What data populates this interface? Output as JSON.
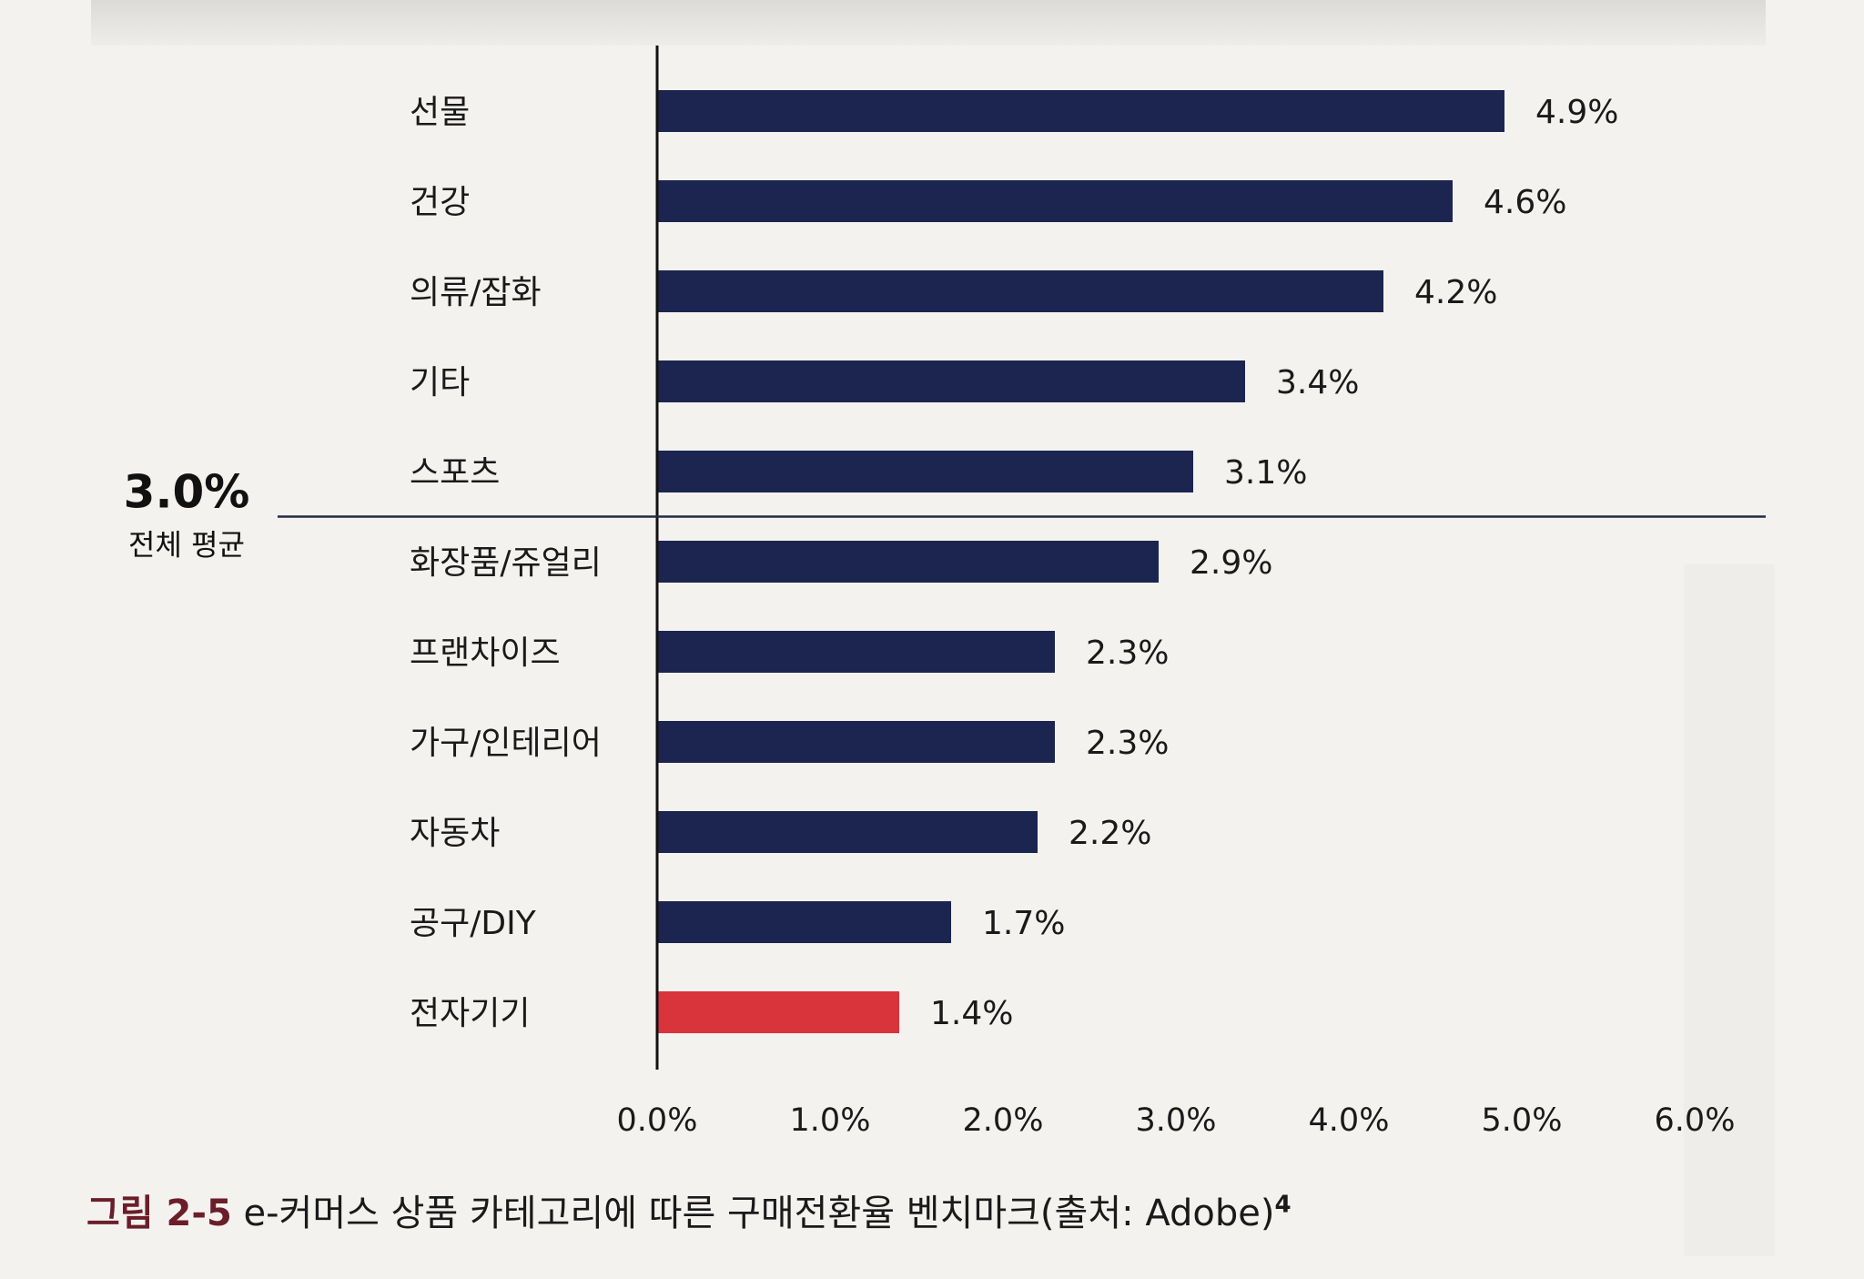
{
  "chart_data": {
    "type": "bar",
    "orientation": "horizontal",
    "categories": [
      "선물",
      "건강",
      "의류/잡화",
      "기타",
      "스포츠",
      "화장품/쥬얼리",
      "프랜차이즈",
      "가구/인테리어",
      "자동차",
      "공구/DIY",
      "전자기기"
    ],
    "values": [
      4.9,
      4.6,
      4.2,
      3.4,
      3.1,
      2.9,
      2.3,
      2.3,
      2.2,
      1.7,
      1.4
    ],
    "value_labels": [
      "4.9%",
      "4.6%",
      "4.2%",
      "3.4%",
      "3.1%",
      "2.9%",
      "2.3%",
      "2.3%",
      "2.2%",
      "1.7%",
      "1.4%"
    ],
    "bar_colors": [
      "#1b2550",
      "#1b2550",
      "#1b2550",
      "#1b2550",
      "#1b2550",
      "#1b2550",
      "#1b2550",
      "#1b2550",
      "#1b2550",
      "#1b2550",
      "#d9343c"
    ],
    "xlim": [
      0,
      6
    ],
    "xticks": [
      0,
      1,
      2,
      3,
      4,
      5,
      6
    ],
    "xtick_labels": [
      "0.0%",
      "1.0%",
      "2.0%",
      "3.0%",
      "4.0%",
      "5.0%",
      "6.0%"
    ],
    "grid": false,
    "reference_line": {
      "value": 3.0,
      "label": "3.0%",
      "caption": "전체 평균"
    }
  },
  "figure_caption": {
    "label": "그림 2-5",
    "text": "e-커머스 상품 카테고리에 따른 구매전환율 벤치마크(출처: Adobe)",
    "footnote_mark": "4"
  }
}
